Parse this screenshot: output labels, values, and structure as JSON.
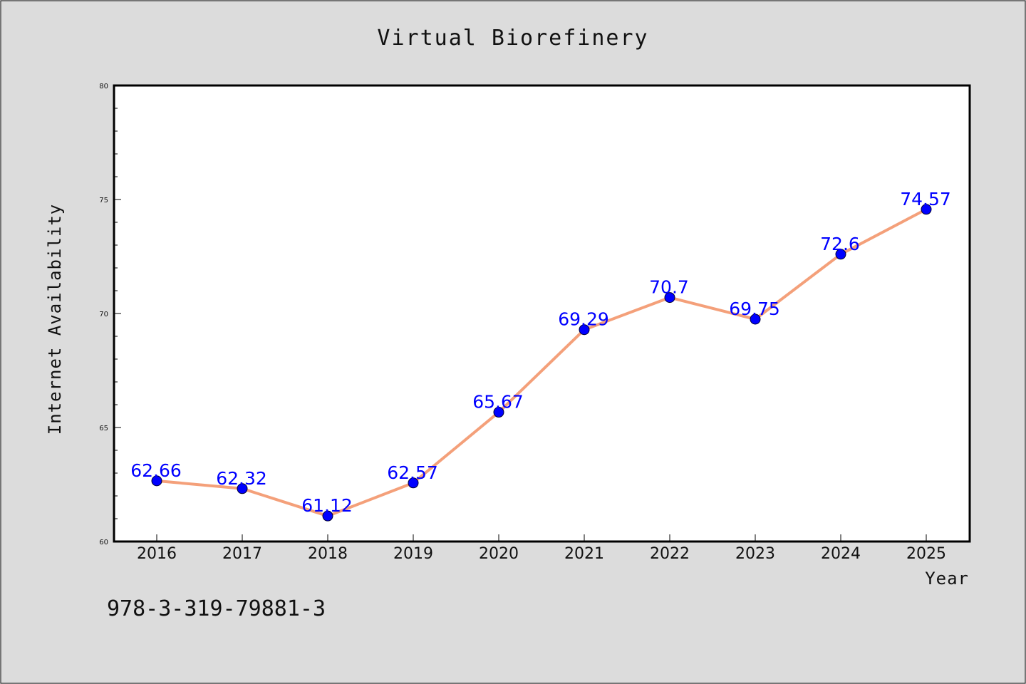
{
  "chart_data": {
    "type": "line",
    "title": "Virtual Biorefinery",
    "xlabel": "Year",
    "ylabel": "Internet Availability",
    "categories": [
      "2016",
      "2017",
      "2018",
      "2019",
      "2020",
      "2021",
      "2022",
      "2023",
      "2024",
      "2025"
    ],
    "series": [
      {
        "values": [
          62.66,
          62.32,
          61.12,
          62.57,
          65.67,
          69.29,
          70.7,
          69.75,
          72.6,
          74.57
        ],
        "data_labels": [
          "62.66",
          "62.32",
          "61.12",
          "62.57",
          "65.67",
          "69.29",
          "70.7",
          "69.75",
          "72.6",
          "74.57"
        ]
      }
    ],
    "ylim": [
      60,
      80
    ],
    "yticks": [
      "60",
      "65",
      "70",
      "75",
      "80"
    ],
    "grid": false,
    "legend": "none",
    "colors": {
      "line": "#f4a07a",
      "marker": "#0000ff",
      "data_label": "#0000ff",
      "background": "#dcdcdc",
      "plot_area": "#ffffff"
    }
  },
  "footnote": "978-3-319-79881-3"
}
